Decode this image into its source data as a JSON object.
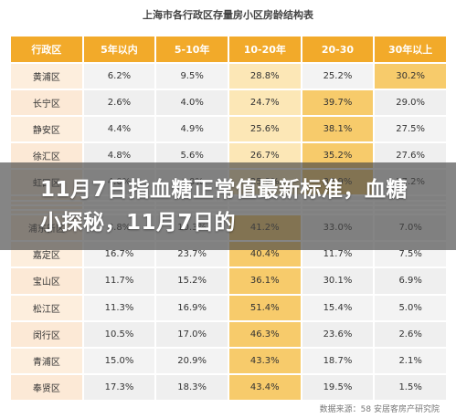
{
  "table": {
    "title": "上海市各行政区存量房小区房龄结构表",
    "headers": [
      "行政区",
      "5年以内",
      "5-10年",
      "10-20年",
      "20-30",
      "30年以上"
    ],
    "rows": [
      [
        "黄浦区",
        "6.2%",
        "9.5%",
        "28.8%",
        "25.2%",
        "30.2%"
      ],
      [
        "长宁区",
        "2.6%",
        "4.0%",
        "24.7%",
        "39.7%",
        "29.0%"
      ],
      [
        "静安区",
        "4.4%",
        "4.9%",
        "25.6%",
        "38.1%",
        "27.5%"
      ],
      [
        "徐汇区",
        "4.8%",
        "5.6%",
        "26.7%",
        "35.2%",
        "27.6%"
      ],
      [
        "虹口区",
        "4.0%",
        "4.0%",
        "25.9%",
        "38.9%",
        "27.2%"
      ],
      [
        "",
        "",
        "",
        "",
        "",
        ""
      ],
      [
        "",
        "",
        "",
        "",
        "",
        ""
      ],
      [
        "",
        "",
        "",
        "",
        "",
        ""
      ],
      [
        "",
        "",
        "",
        "",
        "",
        ""
      ],
      [
        "浦东新区",
        "8.8%",
        "10.3%",
        "41.2%",
        "33.0%",
        "7.0%"
      ],
      [
        "嘉定区",
        "16.7%",
        "23.7%",
        "40.4%",
        "11.7%",
        "7.5%"
      ],
      [
        "宝山区",
        "11.7%",
        "15.2%",
        "36.1%",
        "30.1%",
        "6.9%"
      ],
      [
        "松江区",
        "11.3%",
        "16.9%",
        "51.4%",
        "15.4%",
        "5.0%"
      ],
      [
        "闵行区",
        "10.5%",
        "17.0%",
        "46.3%",
        "23.6%",
        "2.6%"
      ],
      [
        "青浦区",
        "15.0%",
        "20.9%",
        "43.3%",
        "18.7%",
        "2.1%"
      ],
      [
        "奉贤区",
        "17.3%",
        "18.3%",
        "43.4%",
        "19.5%",
        "1.5%"
      ]
    ],
    "highlight_colors": {
      "header": "#F2AA2A",
      "light": "#FCE7B6",
      "strong": "#F7CB6B"
    }
  },
  "overlay": {
    "text": "11月7日指血糖正常值最新标准，血糖小探秘，11月7日的"
  },
  "source": "数据来源：58 安居客房产研究院"
}
